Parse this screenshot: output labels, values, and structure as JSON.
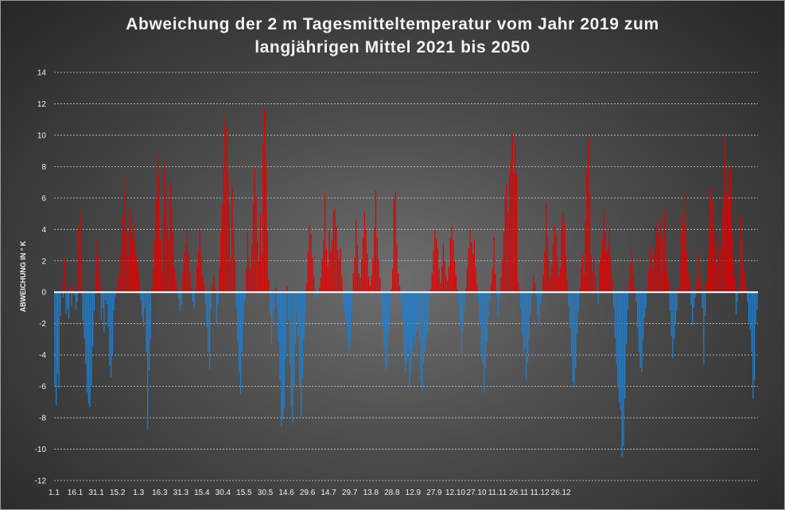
{
  "chart_data": {
    "type": "bar",
    "title_line1": "Abweichung der 2 m Tagesmitteltemperatur  vom Jahr 2019 zum",
    "title_line2": "langjährigen Mittel 2021 bis 2050",
    "xlabel": "",
    "ylabel": "ABWEICHUNG IN ° K",
    "ylim": [
      -12,
      14
    ],
    "y_ticks": [
      "14",
      "12",
      "10",
      "8",
      "6",
      "4",
      "2",
      "0",
      "-2",
      "-4",
      "-6",
      "-8",
      "-10",
      "-12"
    ],
    "x_ticks": [
      "1.1",
      "16.1",
      "31.1",
      "15.2",
      "1.3",
      "16.3",
      "31.3",
      "15.4",
      "30.4",
      "15.5",
      "30.5",
      "14.6",
      "29.6",
      "14.7",
      "29.7",
      "13.8",
      "28.8",
      "12.9",
      "27.9",
      "12.10",
      "27.10",
      "11.11",
      "26.11",
      "11.12",
      "26.12"
    ],
    "grid": true,
    "colors": {
      "positive": "#e00000",
      "negative": "#1f7fd0",
      "grid": "#cfcfcf",
      "zero_line": "#ffffff"
    },
    "values": [
      -6,
      -7.2,
      -5.2,
      -6.1,
      -1.5,
      0.6,
      -0.3,
      2.1,
      -1.4,
      -1.1,
      -1.7,
      0.3,
      -0.9,
      0.5,
      -0.2,
      -1.1,
      -0.6,
      4.2,
      5.0,
      2.0,
      -1.8,
      -3.0,
      -4.6,
      -6.4,
      -7.1,
      -7.3,
      -6.0,
      -3.5,
      -1.2,
      1.2,
      3.4,
      2.2,
      0.6,
      -1.8,
      -1.0,
      -2.6,
      -0.5,
      -0.8,
      -2.2,
      -4.7,
      -5.4,
      -4.0,
      -1.2,
      -0.3,
      0.2,
      0.9,
      1.4,
      2.5,
      4.8,
      6.3,
      7.5,
      3.8,
      2.4,
      4.0,
      5.2,
      3.6,
      4.5,
      3.0,
      2.2,
      1.5,
      1.0,
      -0.5,
      -1.5,
      -2.2,
      -1.0,
      -3.8,
      -8.7,
      -5.0,
      -3.0,
      0.3,
      1.5,
      3.2,
      5.9,
      9.1,
      7.5,
      3.3,
      1.2,
      4.8,
      8.1,
      6.0,
      4.2,
      3.3,
      7.0,
      5.4,
      3.8,
      1.5,
      0.8,
      0.2,
      -0.4,
      -1.2,
      -0.8,
      1.2,
      2.5,
      3.1,
      3.9,
      2.4,
      1.2,
      0.3,
      -0.6,
      -1.0,
      0.2,
      1.6,
      2.7,
      4.0,
      2.2,
      1.0,
      0.5,
      -0.8,
      -2.2,
      -3.8,
      -4.9,
      -1.1,
      0.5,
      1.1,
      0.3,
      -2.0,
      -0.8,
      1.5,
      3.8,
      5.6,
      8.0,
      11.2,
      10.5,
      7.6,
      5.5,
      2.2,
      6.7,
      4.0,
      2.1,
      -1.0,
      -3.2,
      -5.1,
      -6.5,
      -3.8,
      -2.0,
      -0.6,
      1.5,
      3.9,
      2.2,
      1.5,
      3.0,
      5.6,
      7.9,
      6.1,
      3.2,
      2.0,
      5.0,
      2.4,
      9.5,
      11.7,
      8.2,
      3.9,
      0.8,
      -1.4,
      -3.3,
      -2.0,
      -1.0,
      0.3,
      -0.8,
      -3.2,
      -5.6,
      -8.6,
      -8.1,
      -7.4,
      -4.2,
      0.4,
      -1.8,
      -4.6,
      -7.3,
      -8.3,
      -6.0,
      -3.3,
      -1.2,
      -2.8,
      -6.0,
      -7.9,
      -5.5,
      -3.0,
      -1.3,
      0.6,
      2.6,
      4.3,
      3.7,
      2.2,
      1.0,
      0.2,
      -0.4,
      -0.2,
      0.3,
      0.9,
      2.1,
      3.3,
      6.3,
      2.7,
      1.7,
      4.0,
      2.6,
      3.3,
      5.1,
      5.3,
      4.2,
      2.7,
      2.1,
      2.8,
      1.0,
      -0.6,
      -1.3,
      -2.0,
      -3.1,
      -4.0,
      -3.2,
      -1.0,
      1.2,
      2.2,
      4.6,
      3.0,
      1.2,
      0.9,
      2.1,
      3.5,
      5.1,
      4.0,
      2.5,
      1.0,
      0.4,
      1.1,
      2.2,
      4.1,
      6.5,
      3.5,
      2.1,
      0.9,
      -0.6,
      -2.2,
      -3.6,
      -5.1,
      -4.8,
      -2.6,
      -1.0,
      0.2,
      1.5,
      5.9,
      6.4,
      3.1,
      1.2,
      0.4,
      -0.8,
      -1.9,
      -4.0,
      -5.1,
      -4.5,
      -3.5,
      -6.1,
      -5.2,
      -4.0,
      -2.8,
      -3.3,
      -2.5,
      -1.7,
      -3.0,
      -5.7,
      -6.3,
      -4.5,
      -3.8,
      -3.2,
      -2.6,
      -0.9,
      0.2,
      1.2,
      2.6,
      3.9,
      3.4,
      2.8,
      1.5,
      0.6,
      1.7,
      3.1,
      2.0,
      1.0,
      0.7,
      1.6,
      3.4,
      4.2,
      3.3,
      2.0,
      1.1,
      0.2,
      -0.8,
      -2.2,
      -4.1,
      -2.5,
      -1.0,
      0.3,
      1.5,
      2.8,
      3.9,
      3.2,
      2.4,
      3.3,
      1.6,
      0.5,
      -0.7,
      -2.1,
      -3.8,
      -4.5,
      -6.3,
      -4.8,
      -3.2,
      -1.6,
      -0.6,
      0.5,
      1.5,
      3.5,
      1.2,
      -0.3,
      -1.5,
      -0.4,
      0.9,
      2.1,
      3.8,
      6.2,
      6.9,
      5.1,
      7.5,
      8.3,
      10.1,
      7.6,
      9.4,
      7.5,
      0.7,
      0.2,
      -1.0,
      -2.7,
      -3.9,
      -3.6,
      -5.6,
      -4.5,
      -3.0,
      -1.4,
      -0.2,
      1.2,
      0.6,
      -0.3,
      -1.4,
      -2.1,
      -0.8,
      -0.2,
      1.1,
      2.6,
      5.6,
      3.6,
      2.0,
      1.0,
      1.7,
      3.1,
      4.2,
      3.7,
      2.2,
      1.0,
      1.5,
      4.1,
      5.0,
      4.4,
      2.4,
      0.8,
      -0.9,
      -2.3,
      -4.1,
      -5.7,
      -6.1,
      -4.8,
      -2.7,
      -1.2,
      0.3,
      1.6,
      2.4,
      1.1,
      4.6,
      7.8,
      9.8,
      6.2,
      2.4,
      1.3,
      2.1,
      1.0,
      0.1,
      -0.8,
      1.7,
      2.2,
      3.4,
      5.2,
      3.8,
      2.6,
      3.0,
      4.1,
      2.2,
      0.9,
      -1.0,
      -2.9,
      -4.6,
      -6.1,
      -7.0,
      -7.5,
      -10.5,
      -9.8,
      -6.8,
      -3.3,
      -1.1,
      0.6,
      1.8,
      2.6,
      1.1,
      0.3,
      -0.6,
      -2.3,
      -3.8,
      -4.8,
      -5.1,
      -3.0,
      -1.6,
      -1.0,
      0.2,
      1.5,
      2.9,
      2.3,
      1.4,
      2.6,
      4.2,
      4.7,
      3.6,
      4.5,
      1.2,
      3.4,
      5.2,
      2.0,
      1.4,
      0.8,
      -1.2,
      -2.8,
      -4.2,
      -3.0,
      -2.0,
      -1.2,
      0.3,
      1.8,
      3.9,
      5.0,
      4.2,
      6.2,
      2.6,
      1.2,
      0.5,
      -0.8,
      -2.1,
      -1.0,
      -0.3,
      0.7,
      2.4,
      1.3,
      0.9,
      -1.0,
      -4.6,
      -1.5,
      0.6,
      2.0,
      3.7,
      6.7,
      5.8,
      4.2,
      3.1,
      1.8,
      2.6,
      3.8,
      2.9,
      5.2,
      6.1,
      9.8,
      6.3,
      8.2,
      5.9,
      7.8,
      3.6,
      2.0,
      1.0,
      -1.4,
      -0.6,
      0.4,
      4.9,
      3.2,
      1.7,
      1.2,
      0.3,
      -0.6,
      -1.9,
      -2.4,
      -3.8,
      -6.8,
      -5.6,
      -2.0,
      -1.1
    ]
  }
}
